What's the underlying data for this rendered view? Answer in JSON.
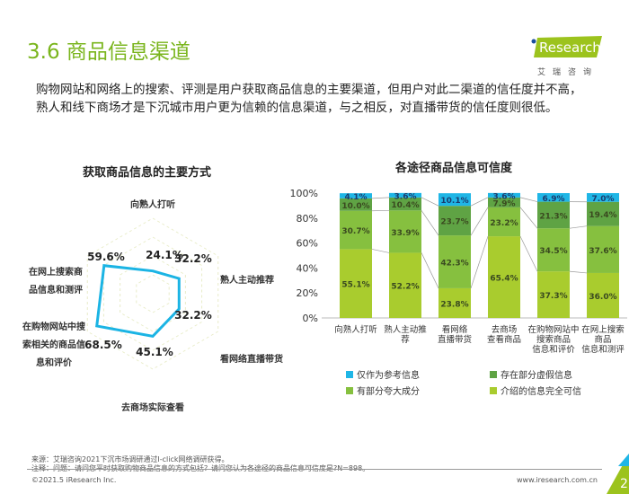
{
  "header": {
    "title": "3.6 商品信息渠道",
    "logo_text": "iResearch",
    "logo_sub": "艾瑞咨询"
  },
  "intro": [
    "购物网站和网络上的搜索、评测是用户获取商品信息的主要渠道，但用户对此二渠道的信任度并不高，",
    "熟人和线下商场才是下沉城市用户更为信赖的信息渠道，与之相反，对直播带货的信任度则很低。"
  ],
  "chart_data": [
    {
      "type": "radar",
      "title": "获取商品信息的主要方式",
      "categories": [
        "向熟人打听",
        "熟人主动推荐",
        "看网络直播带货",
        "去商场实际查看商品",
        "在购物网站中搜索相关的商品信息和评价",
        "在网上搜索商品信息和测评"
      ],
      "values": [
        24.1,
        32.2,
        32.2,
        45.1,
        68.5,
        59.6
      ],
      "labels": [
        "24.1%",
        "32.2%",
        "32.2%",
        "45.1%",
        "68.5%",
        "59.6%"
      ],
      "color": "#1bb4e4"
    },
    {
      "type": "bar",
      "stacked": true,
      "title": "各途径商品信息可信度",
      "categories": [
        "向熟人打听",
        "熟人主动推荐",
        "看网络直播带货",
        "去商场查看商品",
        "在购物网站中搜索商品信息和评价",
        "在网上搜索商品信息和测评"
      ],
      "cat_lines": [
        [
          "向熟人打听"
        ],
        [
          "熟人主动推",
          "荐"
        ],
        [
          "看网络",
          "直播带货"
        ],
        [
          "去商场",
          "查看商品"
        ],
        [
          "在购物网站中",
          "搜索商品",
          "信息和评价"
        ],
        [
          "在网上搜索",
          "商品",
          "信息和测评"
        ]
      ],
      "yticks": [
        "0%",
        "20%",
        "40%",
        "60%",
        "80%",
        "100%"
      ],
      "ylim": [
        0,
        100
      ],
      "series": [
        {
          "name": "介绍的信息完全可信",
          "color": "#a9cc2e",
          "values": [
            55.1,
            52.2,
            23.8,
            65.4,
            37.3,
            36.0
          ]
        },
        {
          "name": "有部分夸大成分",
          "color": "#86c03f",
          "values": [
            30.7,
            33.9,
            42.3,
            23.2,
            34.5,
            37.6
          ]
        },
        {
          "name": "存在部分虚假信息",
          "color": "#5fa344",
          "values": [
            10.0,
            10.4,
            23.7,
            7.9,
            21.3,
            19.4
          ]
        },
        {
          "name": "仅作为参考信息",
          "color": "#1fb6e6",
          "values": [
            4.1,
            3.6,
            10.1,
            3.6,
            6.9,
            7.0
          ]
        }
      ],
      "legend_order": [
        3,
        2,
        1,
        0
      ]
    }
  ],
  "footer": {
    "source": "来源：艾瑞咨询2021下沉市场调研通过I-click网络调研获得。",
    "note": "注释：问题：请问您平时获取购物商品信息的方式包括？请问您认为各途径的商品信息可信度是?N=898。",
    "copyright": "©2021.5 iResearch Inc.",
    "url": "www.iresearch.com.cn",
    "page": "2"
  }
}
